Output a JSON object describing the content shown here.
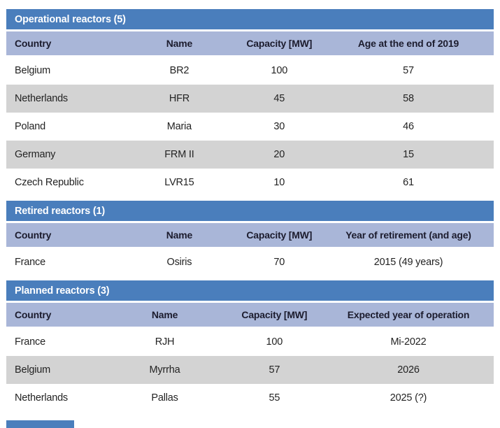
{
  "colors": {
    "section_bar": "#4a7ebc",
    "column_header": "#a9b6d8",
    "column_header_text": "#1c1c2e",
    "row": "#ffffff",
    "row_alt": "#d3d3d3",
    "data_text": "#232323",
    "header_text": "#ffffff"
  },
  "sections": [
    {
      "title": "Operational reactors (5)",
      "columns": [
        "Country",
        "Name",
        "Capacity [MW]",
        "Age at the end of 2019"
      ],
      "rows": [
        [
          "Belgium",
          "BR2",
          "100",
          "57"
        ],
        [
          "Netherlands",
          "HFR",
          "45",
          "58"
        ],
        [
          "Poland",
          "Maria",
          "30",
          "46"
        ],
        [
          "Germany",
          "FRM II",
          "20",
          "15"
        ],
        [
          "Czech Republic",
          "LVR15",
          "10",
          "61"
        ]
      ]
    },
    {
      "title": "Retired reactors (1)",
      "columns": [
        "Country",
        "Name",
        "Capacity [MW]",
        "Year of retirement (and age)"
      ],
      "rows": [
        [
          "France",
          "Osiris",
          "70",
          "2015 (49 years)"
        ]
      ]
    },
    {
      "title": "Planned reactors (3)",
      "columns": [
        "Country",
        "Name",
        "Capacity [MW]",
        "Expected year of operation"
      ],
      "rows": [
        [
          "France",
          "RJH",
          "100",
          "Mi-2022"
        ],
        [
          "Belgium",
          "Myrrha",
          "57",
          "2026"
        ],
        [
          "Netherlands",
          "Pallas",
          "55",
          "2025 (?)"
        ]
      ]
    }
  ]
}
